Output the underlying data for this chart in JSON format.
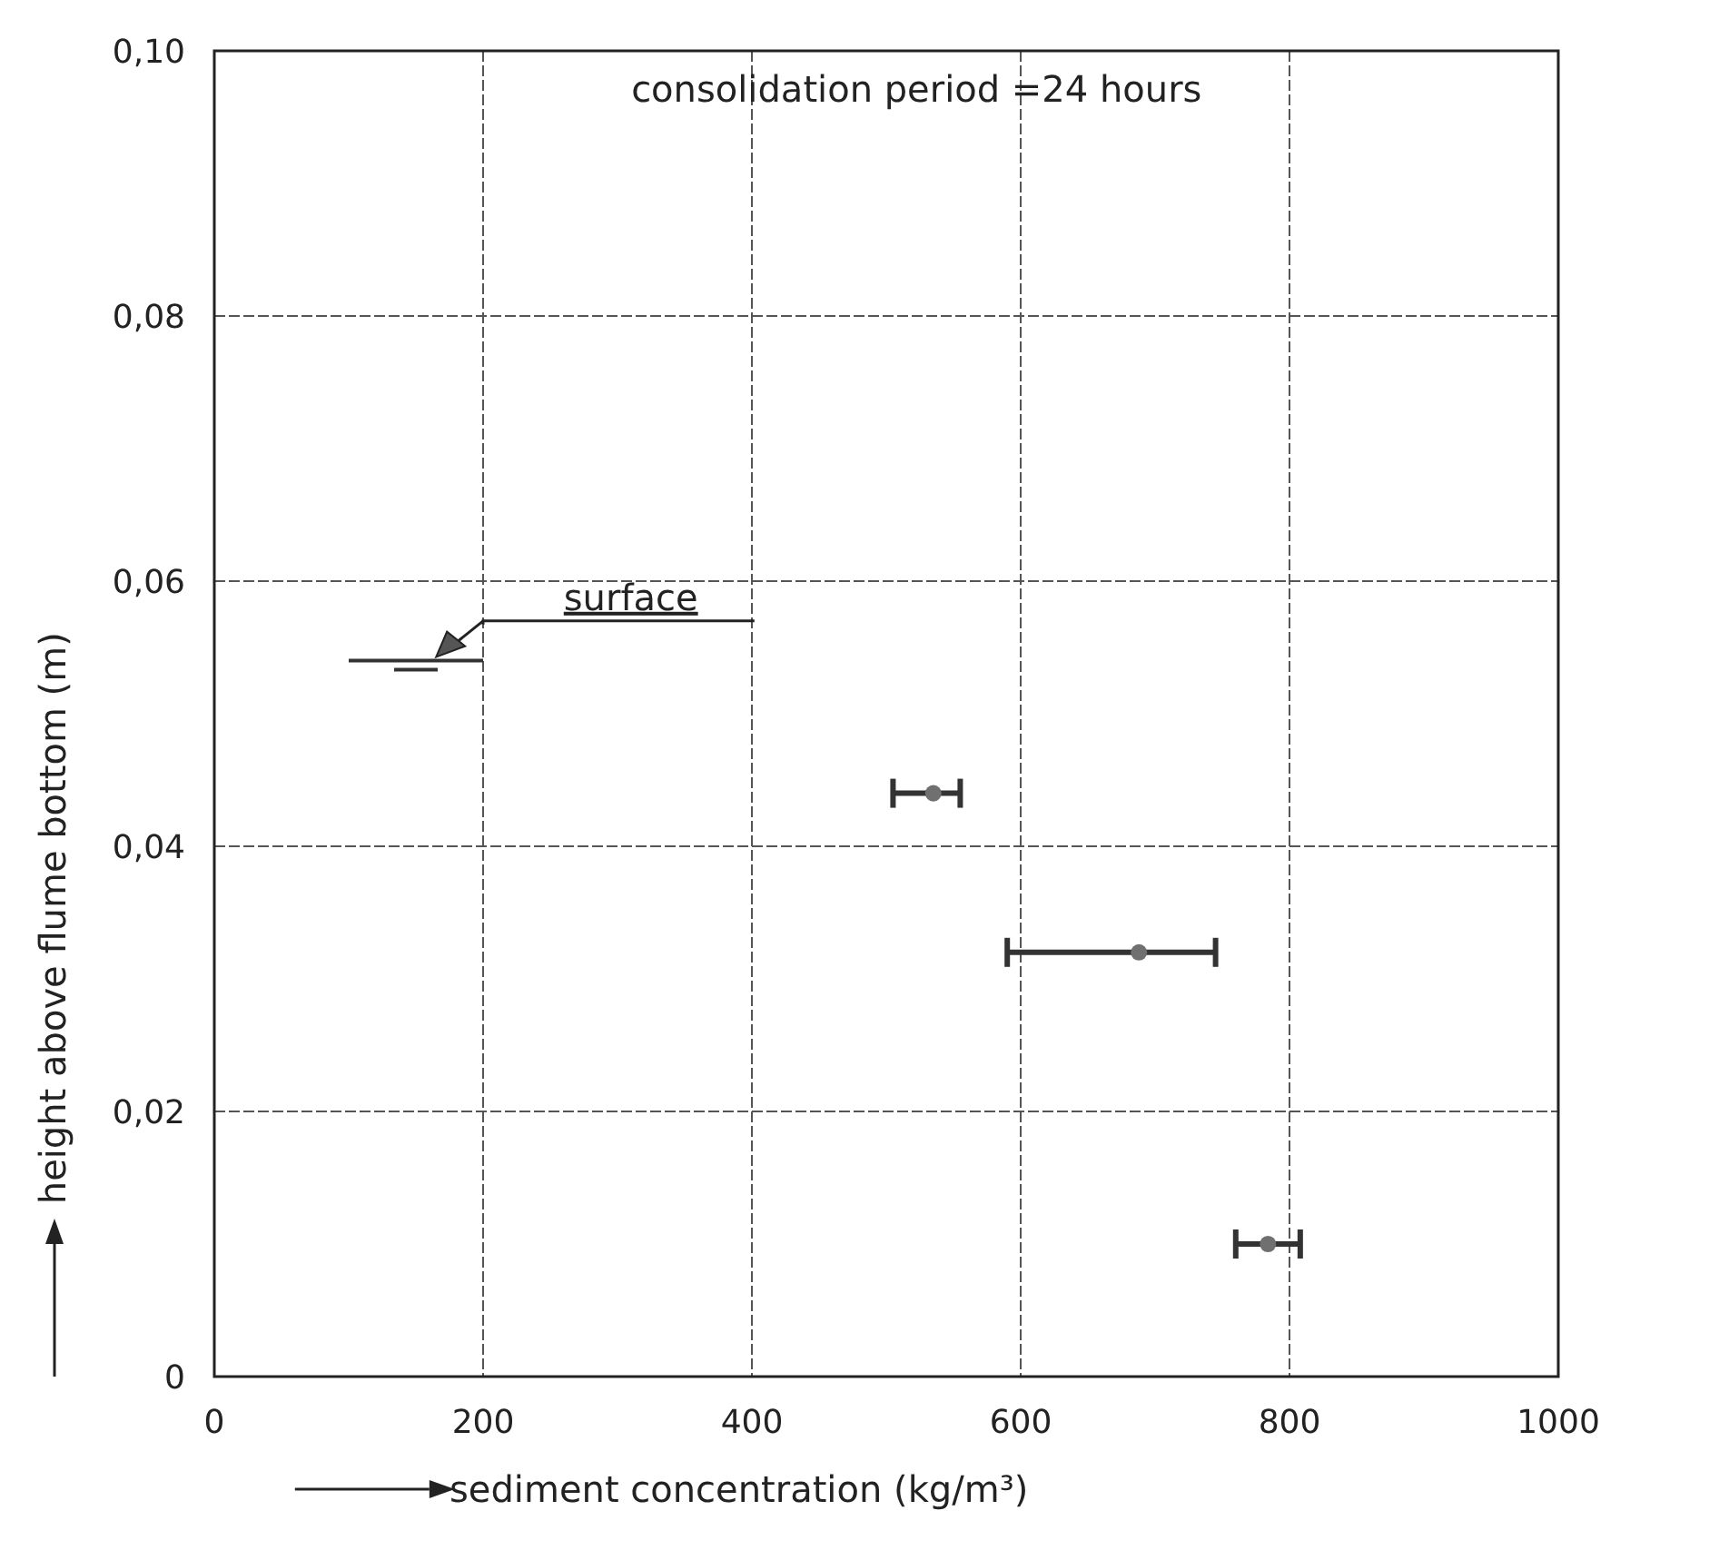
{
  "chart_data": {
    "type": "scatter",
    "title": "consolidation period =24 hours",
    "xlabel": "sediment concentration (kg/m³)",
    "ylabel": "height above flume bottom (m)",
    "xlim": [
      0,
      1000
    ],
    "xticks": [
      0,
      200,
      400,
      600,
      800,
      1000
    ],
    "ylim": [
      0,
      0.1
    ],
    "yticks": [
      0,
      {
        "value": 0.02,
        "label": "0,02"
      },
      {
        "value": 0.04,
        "label": "0,04"
      },
      {
        "value": 0.06,
        "label": "0,06"
      },
      {
        "value": 0.08,
        "label": "0,08"
      },
      {
        "value": 0.1,
        "label": "0,10"
      }
    ],
    "grid": true,
    "series": [
      {
        "marker": "circle",
        "color": "#707070",
        "x": [
          535,
          688,
          784
        ],
        "values": [
          0.044,
          0.032,
          0.01
        ],
        "xerrors": [
          [
            505,
            555
          ],
          [
            590,
            745
          ],
          [
            760,
            808
          ]
        ]
      },
      {
        "type": "line",
        "marker": "none",
        "color": "#333333",
        "x": [
          100,
          200
        ],
        "values": [
          0.054,
          0.054
        ]
      }
    ],
    "annotations": [
      "surface"
    ]
  }
}
